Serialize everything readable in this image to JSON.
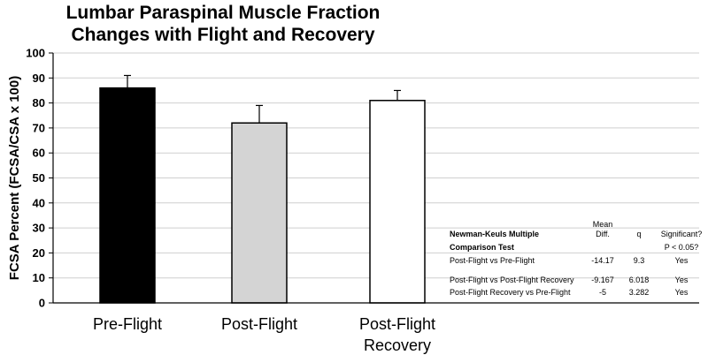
{
  "chart_data": {
    "type": "bar",
    "title": [
      "Lumbar Paraspinal Muscle Fraction",
      "Changes with Flight and Recovery"
    ],
    "ylabel": "FCSA Percent (FCSA/CSA x 100)",
    "xlabel": "",
    "ylim": [
      0,
      100
    ],
    "yticks": [
      0,
      10,
      20,
      30,
      40,
      50,
      60,
      70,
      80,
      90,
      100
    ],
    "grid": true,
    "categories": [
      [
        "Pre-Flight"
      ],
      [
        "Post-Flight"
      ],
      [
        "Post-Flight",
        "Recovery"
      ]
    ],
    "values": [
      86,
      72,
      81
    ],
    "error_upper": [
      5,
      7,
      4
    ],
    "bar_colors": [
      "#000000",
      "#d4d4d4",
      "#ffffff"
    ]
  },
  "stats_table": {
    "title": [
      "Newman-Keuls Multiple",
      "Comparison Test"
    ],
    "headers": {
      "mean_diff": [
        "Mean",
        "Diff."
      ],
      "q": [
        "q"
      ],
      "significant": [
        "Significant?",
        "P < 0.05?"
      ]
    },
    "rows": [
      {
        "comparison": "Post-Flight vs Pre-Flight",
        "mean_diff": "-14.17",
        "q": "9.3",
        "significant": "Yes"
      },
      {
        "comparison": "Post-Flight vs Post-Flight Recovery",
        "mean_diff": "-9.167",
        "q": "6.018",
        "significant": "Yes"
      },
      {
        "comparison": "Post-Flight Recovery vs Pre-Flight",
        "mean_diff": "-5",
        "q": "3.282",
        "significant": "Yes"
      }
    ]
  },
  "colors": {
    "axis": "#000000",
    "gridline": "#cfcfcf",
    "bar_outline": "#000000"
  }
}
